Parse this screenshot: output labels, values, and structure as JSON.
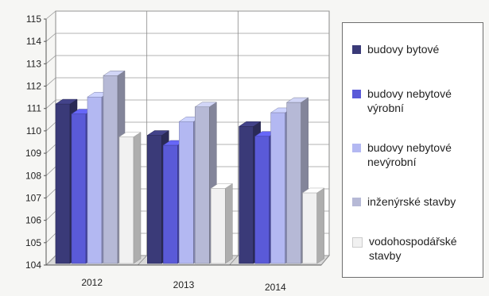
{
  "chart_data": {
    "type": "bar",
    "categories": [
      "2012",
      "2013",
      "2014"
    ],
    "ylim": [
      104,
      115
    ],
    "yticks": [
      104,
      105,
      106,
      107,
      108,
      109,
      110,
      111,
      112,
      113,
      114,
      115
    ],
    "grid": true,
    "legend_position": "right",
    "series": [
      {
        "name": "budovy bytové",
        "values": [
          111.2,
          109.8,
          110.2
        ],
        "color": "#3a3a78"
      },
      {
        "name": "budovy nebytové výrobní",
        "values": [
          110.8,
          109.4,
          109.8
        ],
        "color": "#5a5ad8"
      },
      {
        "name": "budovy nebytové nevýrobní",
        "values": [
          111.6,
          110.5,
          110.9
        ],
        "color": "#b3b8f2"
      },
      {
        "name": "inženýrské stavby",
        "values": [
          112.6,
          111.2,
          111.4
        ],
        "color": "#b6b9d6"
      },
      {
        "name": "vodohospodářské stavby",
        "values": [
          109.9,
          107.6,
          107.4
        ],
        "color": "#f1f1f1"
      }
    ]
  }
}
